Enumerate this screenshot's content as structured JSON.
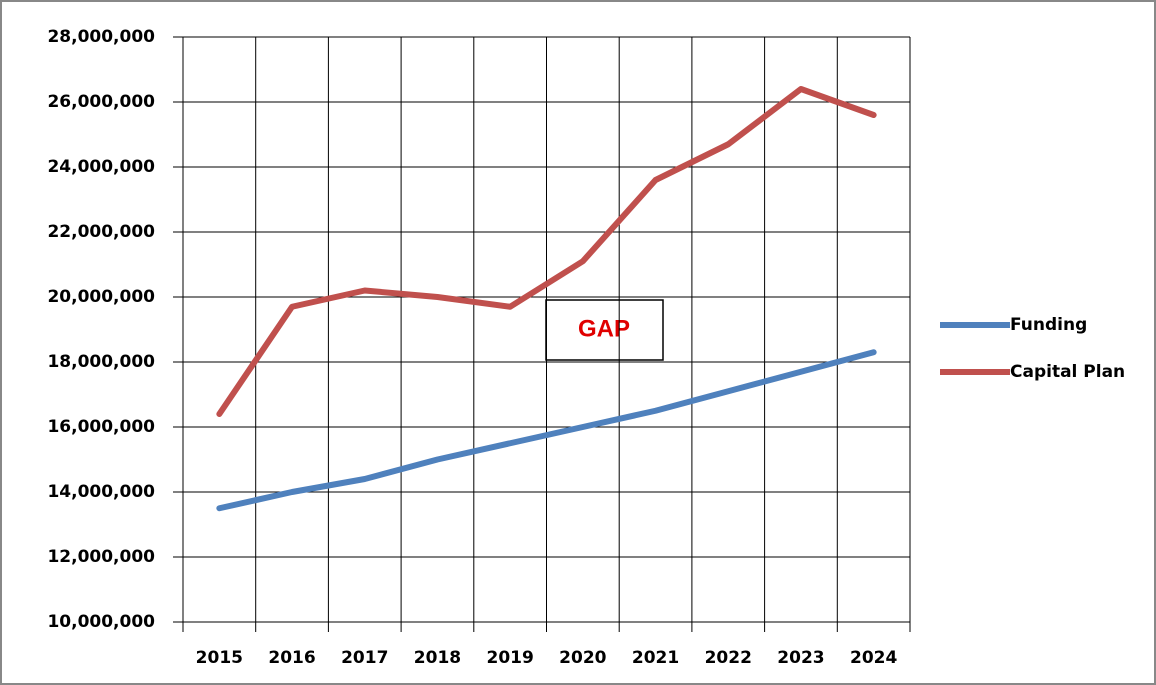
{
  "chart_data": {
    "type": "line",
    "categories": [
      "2015",
      "2016",
      "2017",
      "2018",
      "2019",
      "2020",
      "2021",
      "2022",
      "2023",
      "2024"
    ],
    "series": [
      {
        "name": "Funding",
        "color": "#4f81bd",
        "values": [
          13500000,
          14000000,
          14400000,
          15000000,
          15500000,
          16000000,
          16500000,
          17100000,
          17700000,
          18300000
        ]
      },
      {
        "name": "Capital Plan",
        "color": "#c0504d",
        "values": [
          16400000,
          19700000,
          20200000,
          20000000,
          19700000,
          21100000,
          23600000,
          24700000,
          26400000,
          25600000
        ]
      }
    ],
    "ylim": [
      10000000,
      28000000
    ],
    "yticks": [
      {
        "value": 10000000,
        "label": "10,000,000"
      },
      {
        "value": 12000000,
        "label": "12,000,000"
      },
      {
        "value": 14000000,
        "label": "14,000,000"
      },
      {
        "value": 16000000,
        "label": "16,000,000"
      },
      {
        "value": 18000000,
        "label": "18,000,000"
      },
      {
        "value": 20000000,
        "label": "20,000,000"
      },
      {
        "value": 22000000,
        "label": "22,000,000"
      },
      {
        "value": 24000000,
        "label": "24,000,000"
      },
      {
        "value": 26000000,
        "label": "26,000,000"
      },
      {
        "value": 28000000,
        "label": "28,000,000"
      }
    ],
    "grid": true,
    "legend": "right",
    "annotation": "GAP"
  }
}
